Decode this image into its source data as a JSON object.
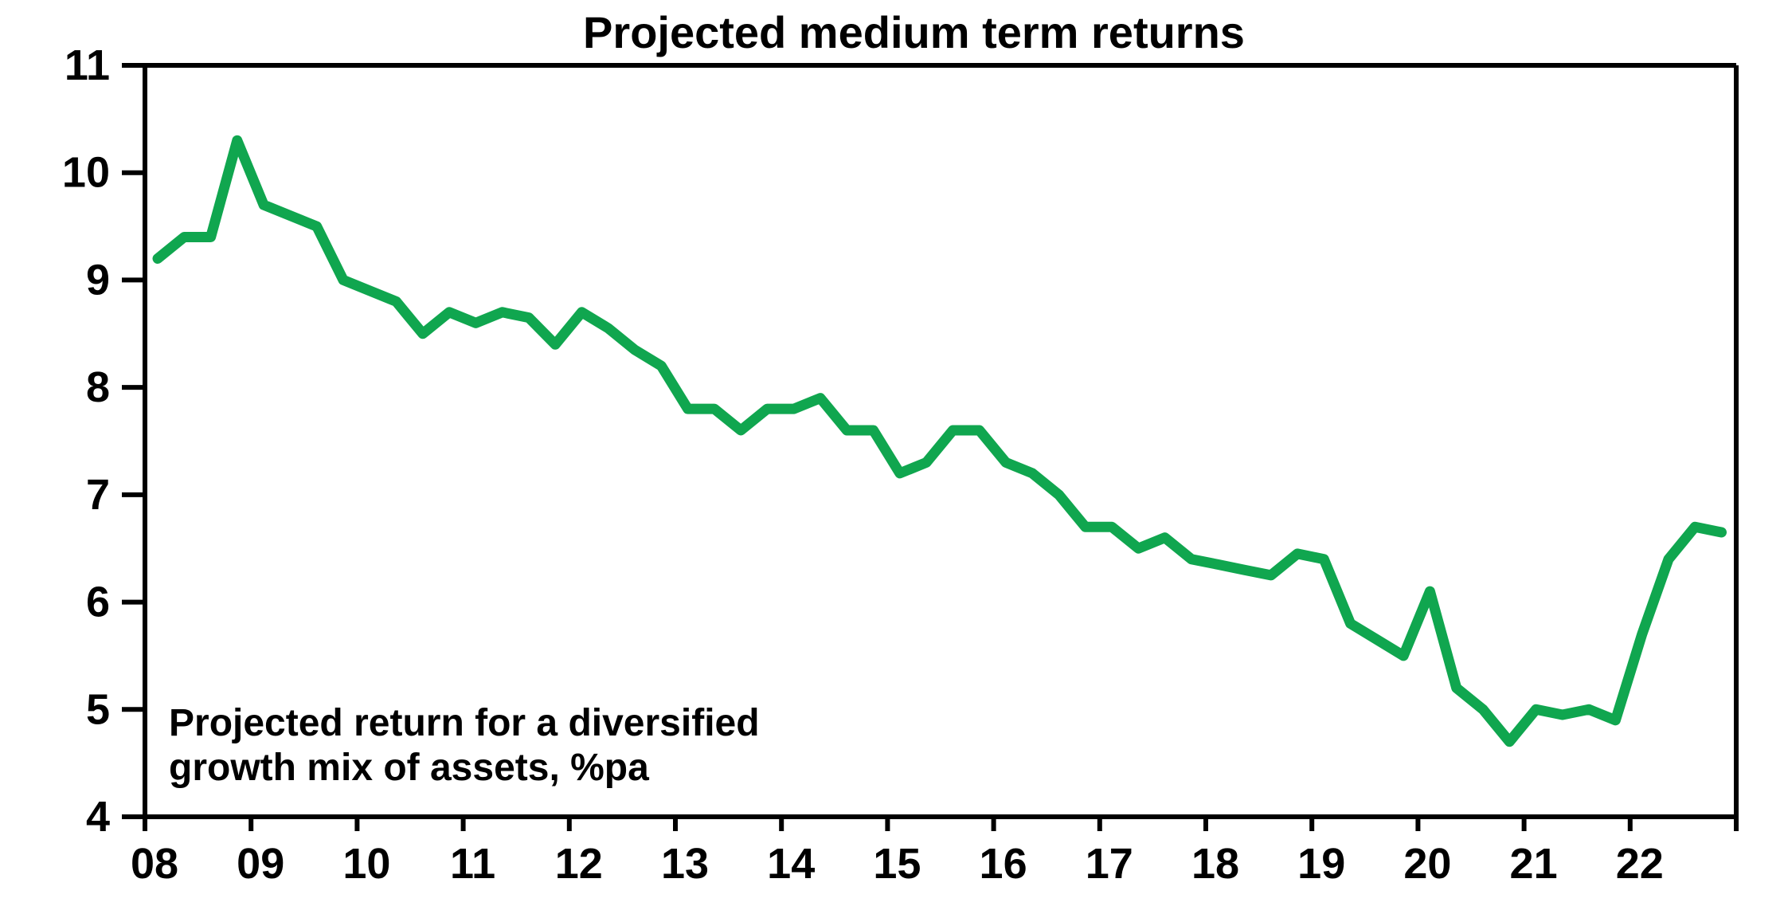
{
  "title": "Projected medium term returns",
  "annotation": {
    "line1": "Projected return for a diversified",
    "line2": "growth mix of assets, %pa"
  },
  "chart_data": {
    "type": "line",
    "title": "Projected medium term returns",
    "annotation": [
      "Projected return for a diversified",
      "growth mix of assets, %pa"
    ],
    "series_name": "Projected return for a diversified growth mix of assets, %pa",
    "frequency": "quarterly",
    "x_tick_labels": [
      "08",
      "09",
      "10",
      "11",
      "12",
      "13",
      "14",
      "15",
      "16",
      "17",
      "18",
      "19",
      "20",
      "21",
      "22"
    ],
    "y_tick_labels": [
      "4",
      "5",
      "6",
      "7",
      "8",
      "9",
      "10",
      "11"
    ],
    "ylim": [
      4,
      11
    ],
    "xlim_years": [
      2008,
      2023
    ],
    "grid": false,
    "legend_position": "none",
    "line_color": "#10A64F",
    "axis_color": "#000000",
    "quarters": [
      "2008Q1",
      "2008Q2",
      "2008Q3",
      "2008Q4",
      "2009Q1",
      "2009Q2",
      "2009Q3",
      "2009Q4",
      "2010Q1",
      "2010Q2",
      "2010Q3",
      "2010Q4",
      "2011Q1",
      "2011Q2",
      "2011Q3",
      "2011Q4",
      "2012Q1",
      "2012Q2",
      "2012Q3",
      "2012Q4",
      "2013Q1",
      "2013Q2",
      "2013Q3",
      "2013Q4",
      "2014Q1",
      "2014Q2",
      "2014Q3",
      "2014Q4",
      "2015Q1",
      "2015Q2",
      "2015Q3",
      "2015Q4",
      "2016Q1",
      "2016Q2",
      "2016Q3",
      "2016Q4",
      "2017Q1",
      "2017Q2",
      "2017Q3",
      "2017Q4",
      "2018Q1",
      "2018Q2",
      "2018Q3",
      "2018Q4",
      "2019Q1",
      "2019Q2",
      "2019Q3",
      "2019Q4",
      "2020Q1",
      "2020Q2",
      "2020Q3",
      "2020Q4",
      "2021Q1",
      "2021Q2",
      "2021Q3",
      "2021Q4",
      "2022Q1",
      "2022Q2",
      "2022Q3",
      "2022Q4"
    ],
    "values": [
      9.2,
      9.4,
      9.4,
      10.3,
      9.7,
      9.6,
      9.5,
      9.0,
      8.9,
      8.8,
      8.5,
      8.7,
      8.6,
      8.7,
      8.65,
      8.4,
      8.7,
      8.55,
      8.35,
      8.2,
      7.8,
      7.8,
      7.6,
      7.8,
      7.8,
      7.9,
      7.6,
      7.6,
      7.2,
      7.3,
      7.6,
      7.6,
      7.3,
      7.2,
      7.0,
      6.7,
      6.7,
      6.5,
      6.6,
      6.4,
      6.35,
      6.3,
      6.25,
      6.45,
      6.4,
      5.8,
      5.65,
      5.5,
      6.1,
      5.2,
      5.0,
      4.7,
      5.0,
      4.95,
      5.0,
      4.9,
      5.7,
      6.4,
      6.7,
      6.65
    ]
  }
}
